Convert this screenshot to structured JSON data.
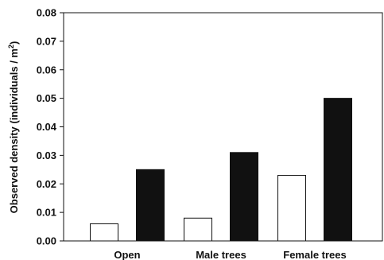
{
  "chart_data": {
    "type": "bar",
    "title": "",
    "xlabel": "",
    "ylabel": "Observed density (individuals / m",
    "ylabel_superscript": "2",
    "ylabel_suffix": ")",
    "categories": [
      "Open",
      "Male trees",
      "Female trees"
    ],
    "series": [
      {
        "values": [
          0.006,
          0.008,
          0.023
        ],
        "color": "#ffffff"
      },
      {
        "values": [
          0.025,
          0.031,
          0.05
        ],
        "color": "#111111"
      }
    ],
    "ylim": [
      0,
      0.08
    ],
    "yticks": [
      "0.00",
      "0.01",
      "0.02",
      "0.03",
      "0.04",
      "0.05",
      "0.06",
      "0.07",
      "0.08"
    ],
    "grid": false,
    "legend": "none"
  }
}
